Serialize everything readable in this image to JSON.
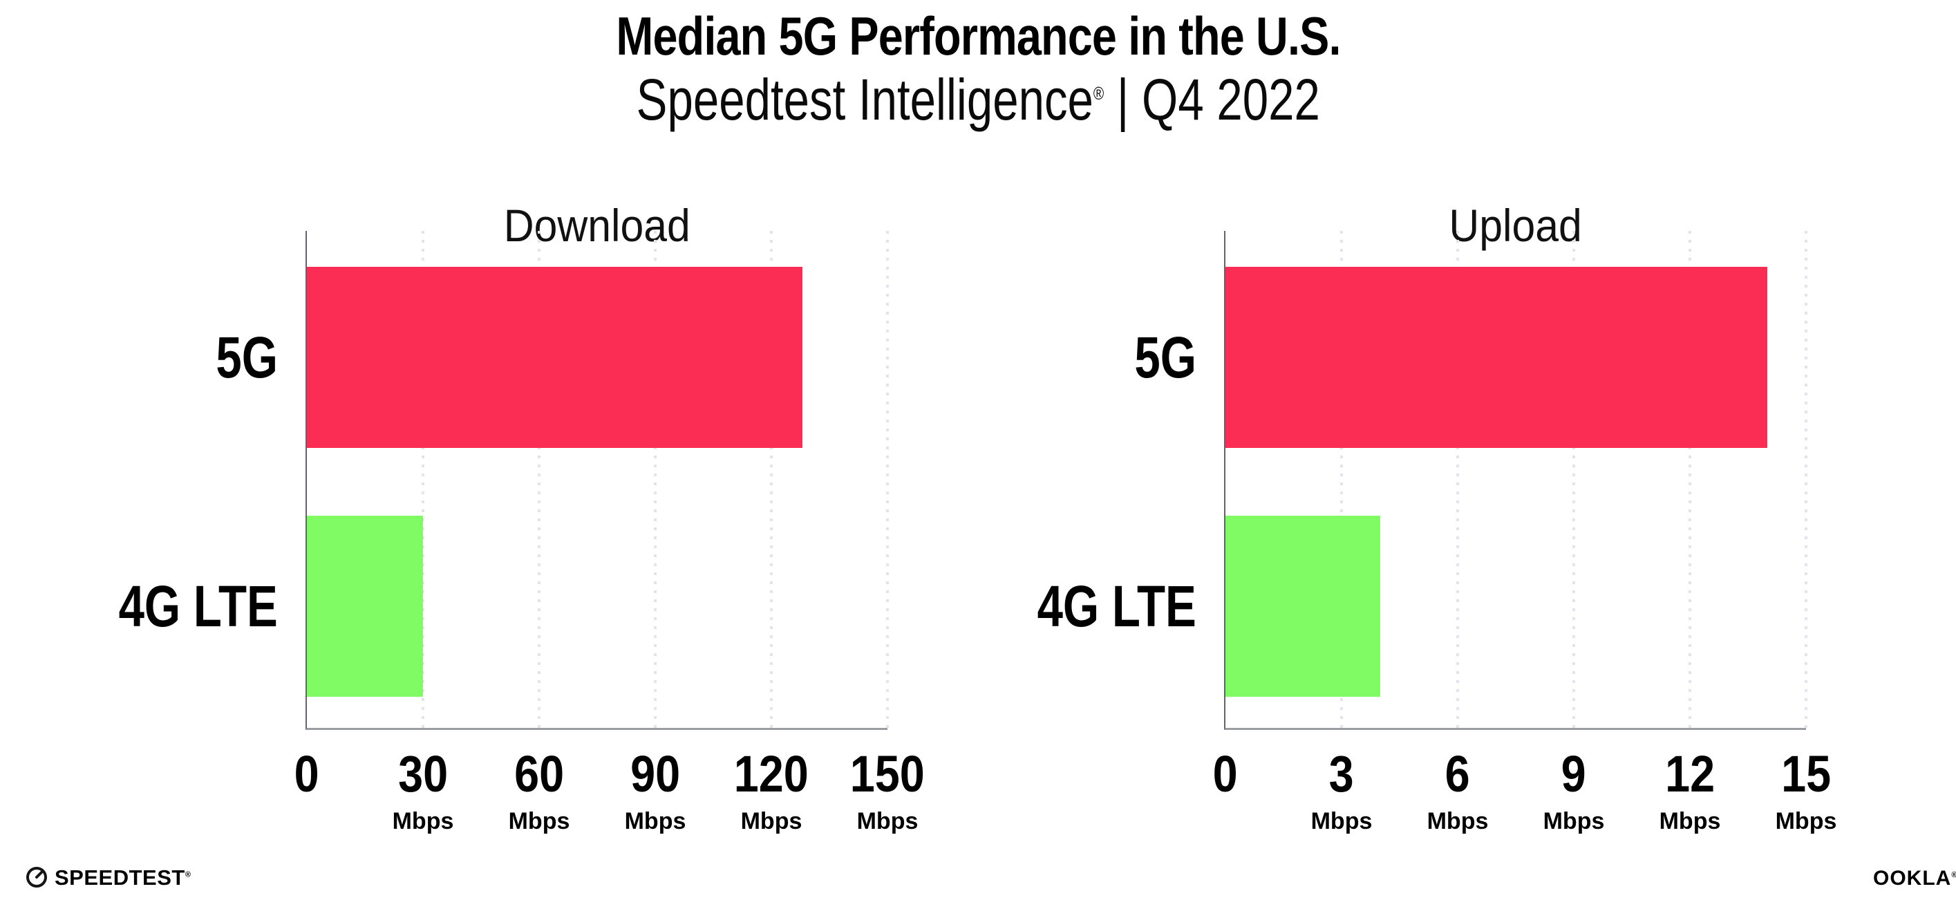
{
  "header": {
    "title": "Median 5G Performance in the U.S.",
    "subtitle_brand": "Speedtest Intelligence",
    "subtitle_reg": "®",
    "subtitle_rest": " | Q4 2022"
  },
  "footer": {
    "speedtest_icon": "speedtest-gauge-icon",
    "speedtest_text": "SPEEDTEST",
    "speedtest_reg": "®",
    "ookla_text": "OOKLA",
    "ookla_reg": "®"
  },
  "colors": {
    "bar_5g": "#FC2D55",
    "bar_4g_lte": "#81FB64",
    "y_axis": "#63636b",
    "x_axis": "#9b9ba2",
    "grid_dots": "#e3e3ee",
    "text": "#000000"
  },
  "chart_data": [
    {
      "type": "bar",
      "orientation": "horizontal",
      "title": "Download",
      "categories": [
        "5G",
        "4G LTE"
      ],
      "values": [
        128,
        30
      ],
      "unit": "Mbps",
      "xlim": [
        0,
        150
      ],
      "xticks": [
        0,
        30,
        60,
        90,
        120,
        150
      ],
      "tick_unit_label": "Mbps",
      "grid": "vertical-dotted",
      "legend": "none",
      "bar_colors": [
        "#FC2D55",
        "#81FB64"
      ]
    },
    {
      "type": "bar",
      "orientation": "horizontal",
      "title": "Upload",
      "categories": [
        "5G",
        "4G LTE"
      ],
      "values": [
        14,
        4
      ],
      "unit": "Mbps",
      "xlim": [
        0,
        15
      ],
      "xticks": [
        0,
        3,
        6,
        9,
        12,
        15
      ],
      "tick_unit_label": "Mbps",
      "grid": "vertical-dotted",
      "legend": "none",
      "bar_colors": [
        "#FC2D55",
        "#81FB64"
      ]
    }
  ]
}
